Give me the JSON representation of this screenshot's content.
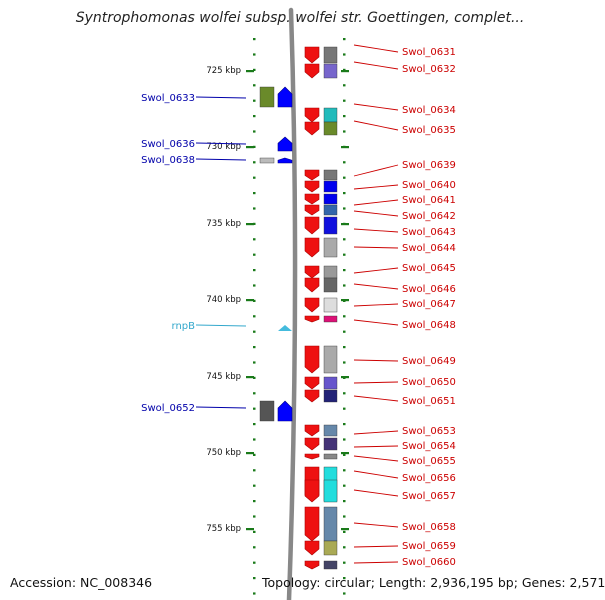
{
  "title": "Syntrophomonas wolfei subsp. wolfei str. Goettingen, complet...",
  "accession": "Accession: NC_008346",
  "topology": "Topology: circular; Length: 2,936,195 bp; Genes: 2,571",
  "colors": {
    "backbone": "#888888",
    "tick": "#1a7a1a",
    "right_label": "#cc0000",
    "left_label": "#0000aa",
    "rna_label": "#33a8cc"
  },
  "scale_labels": [
    "725 kbp",
    "730 kbp",
    "735 kbp",
    "740 kbp",
    "745 kbp",
    "750 kbp",
    "755 kbp"
  ],
  "right_genes": [
    {
      "label": "Swol_0631",
      "color": "#777777"
    },
    {
      "label": "Swol_0632",
      "color": "#7766cc"
    },
    {
      "label": "Swol_0634",
      "color": "#22bbbb"
    },
    {
      "label": "Swol_0635",
      "color": "#6a8a2a"
    },
    {
      "label": "Swol_0639",
      "color": "#777777"
    },
    {
      "label": "Swol_0640",
      "color": "#0000ee"
    },
    {
      "label": "Swol_0641",
      "color": "#0000ee"
    },
    {
      "label": "Swol_0642",
      "color": "#3366aa"
    },
    {
      "label": "Swol_0643",
      "color": "#1111dd"
    },
    {
      "label": "Swol_0644",
      "color": "#aaaaaa"
    },
    {
      "label": "Swol_0645",
      "color": "#999999"
    },
    {
      "label": "Swol_0646",
      "color": "#666666"
    },
    {
      "label": "Swol_0647",
      "color": "#dddddd"
    },
    {
      "label": "Swol_0648",
      "color": "#dd1177"
    },
    {
      "label": "Swol_0649",
      "color": "#aaaaaa"
    },
    {
      "label": "Swol_0650",
      "color": "#6655cc"
    },
    {
      "label": "Swol_0651",
      "color": "#222277"
    },
    {
      "label": "Swol_0653",
      "color": "#6688aa"
    },
    {
      "label": "Swol_0654",
      "color": "#443377"
    },
    {
      "label": "Swol_0655",
      "color": "#888888"
    },
    {
      "label": "Swol_0656",
      "color": "#22dddd"
    },
    {
      "label": "Swol_0657",
      "color": "#22dddd"
    },
    {
      "label": "Swol_0658",
      "color": "#6688aa"
    },
    {
      "label": "Swol_0659",
      "color": "#aaaa55"
    },
    {
      "label": "Swol_0660",
      "color": "#444466"
    }
  ],
  "left_genes": [
    {
      "label": "Swol_0633",
      "color": "#6a8a2a"
    },
    {
      "label": "Swol_0636",
      "color": "#ffffff"
    },
    {
      "label": "Swol_0638",
      "color": "#bbbbbb"
    },
    {
      "label": "rnpB",
      "color": "#44bbdd"
    },
    {
      "label": "Swol_0652",
      "color": "#555555"
    }
  ]
}
